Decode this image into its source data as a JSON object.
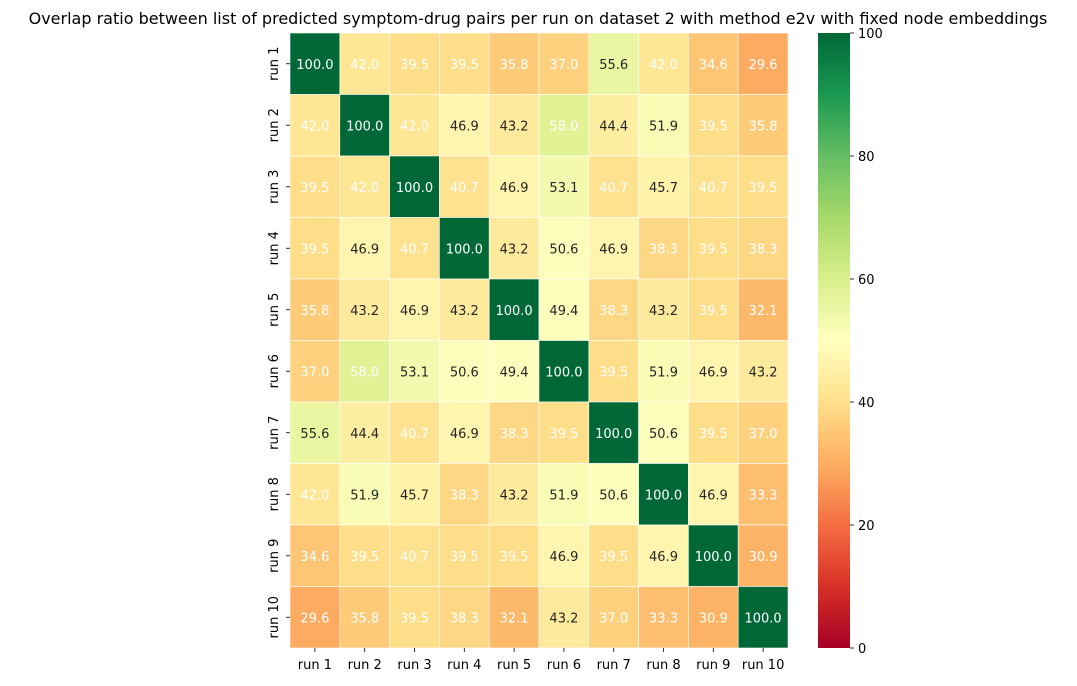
{
  "chart_data": {
    "type": "heatmap",
    "title": "Overlap ratio between list of predicted symptom-drug pairs per run on dataset 2 with method e2v with fixed node embeddings",
    "x_labels": [
      "run 1",
      "run 2",
      "run 3",
      "run 4",
      "run 5",
      "run 6",
      "run 7",
      "run 8",
      "run 9",
      "run 10"
    ],
    "y_labels": [
      "run 1",
      "run 2",
      "run 3",
      "run 4",
      "run 5",
      "run 6",
      "run 7",
      "run 8",
      "run 9",
      "run 10"
    ],
    "values": [
      [
        100.0,
        42.0,
        39.5,
        39.5,
        35.8,
        37.0,
        55.6,
        42.0,
        34.6,
        29.6
      ],
      [
        42.0,
        100.0,
        42.0,
        46.9,
        43.2,
        58.0,
        44.4,
        51.9,
        39.5,
        35.8
      ],
      [
        39.5,
        42.0,
        100.0,
        40.7,
        46.9,
        53.1,
        40.7,
        45.7,
        40.7,
        39.5
      ],
      [
        39.5,
        46.9,
        40.7,
        100.0,
        43.2,
        50.6,
        46.9,
        38.3,
        39.5,
        38.3
      ],
      [
        35.8,
        43.2,
        46.9,
        43.2,
        100.0,
        49.4,
        38.3,
        43.2,
        39.5,
        32.1
      ],
      [
        37.0,
        58.0,
        53.1,
        50.6,
        49.4,
        100.0,
        39.5,
        51.9,
        46.9,
        43.2
      ],
      [
        55.6,
        44.4,
        40.7,
        46.9,
        38.3,
        39.5,
        100.0,
        50.6,
        39.5,
        37.0
      ],
      [
        42.0,
        51.9,
        45.7,
        38.3,
        43.2,
        51.9,
        50.6,
        100.0,
        46.9,
        33.3
      ],
      [
        34.6,
        39.5,
        40.7,
        39.5,
        39.5,
        46.9,
        39.5,
        46.9,
        100.0,
        30.9
      ],
      [
        29.6,
        35.8,
        39.5,
        38.3,
        32.1,
        43.2,
        37.0,
        33.3,
        30.9,
        100.0
      ]
    ],
    "value_format": "0.0",
    "colormap": "RdYlGn",
    "vmin": 0,
    "vmax": 100,
    "colorbar_ticks": [
      0,
      20,
      40,
      60,
      80,
      100
    ],
    "grid": false
  }
}
